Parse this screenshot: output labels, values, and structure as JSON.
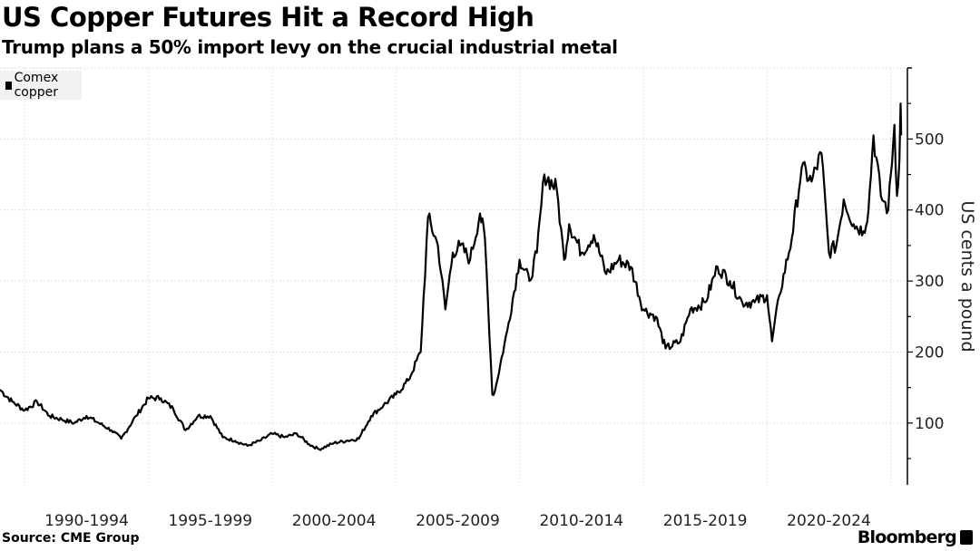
{
  "chart_data": {
    "type": "line",
    "title": "US Copper Futures Hit a Record High",
    "subtitle": "Trump plans a 50% import levy on the crucial industrial metal",
    "ylabel": "US cents a pound",
    "xlabel": "",
    "ylim": [
      13,
      600
    ],
    "xlim": [
      1989.0,
      2025.6
    ],
    "grid": true,
    "legend_placement": "top-left",
    "y_ticks": [
      100,
      200,
      300,
      400,
      500
    ],
    "x_tick_labels": [
      {
        "label": "1990-1994",
        "start": 1990
      },
      {
        "label": "1995-1999",
        "start": 1995
      },
      {
        "label": "2000-2004",
        "start": 2000
      },
      {
        "label": "2005-2009",
        "start": 2005
      },
      {
        "label": "2010-2014",
        "start": 2010
      },
      {
        "label": "2015-2019",
        "start": 2015
      },
      {
        "label": "2020-2024",
        "start": 2020
      }
    ],
    "series": [
      {
        "name": "Comex copper",
        "color": "#000000",
        "x": [
          1989.0,
          1989.5,
          1990.0,
          1990.5,
          1991.0,
          1991.5,
          1992.0,
          1992.5,
          1993.0,
          1993.5,
          1993.9,
          1994.5,
          1995.0,
          1995.5,
          1996.0,
          1996.5,
          1997.0,
          1997.5,
          1998.0,
          1998.5,
          1999.0,
          1999.5,
          2000.0,
          2000.5,
          2001.0,
          2001.5,
          2001.9,
          2002.5,
          2003.0,
          2003.5,
          2004.0,
          2004.5,
          2005.0,
          2005.5,
          2006.0,
          2006.3,
          2006.7,
          2007.0,
          2007.3,
          2007.6,
          2008.0,
          2008.4,
          2008.6,
          2008.9,
          2009.0,
          2009.5,
          2010.0,
          2010.4,
          2010.7,
          2011.0,
          2011.5,
          2011.8,
          2012.0,
          2012.5,
          2013.0,
          2013.5,
          2014.0,
          2014.5,
          2015.0,
          2015.5,
          2015.9,
          2016.5,
          2016.9,
          2017.5,
          2018.0,
          2018.5,
          2019.0,
          2019.5,
          2020.0,
          2020.2,
          2020.5,
          2021.0,
          2021.4,
          2021.8,
          2022.2,
          2022.5,
          2022.8,
          2023.1,
          2023.5,
          2023.9,
          2024.1,
          2024.3,
          2024.6,
          2024.9,
          2025.15,
          2025.25,
          2025.35,
          2025.4,
          2025.42
        ],
        "values": [
          147,
          130,
          118,
          130,
          110,
          105,
          100,
          110,
          100,
          90,
          78,
          110,
          135,
          135,
          120,
          90,
          110,
          110,
          80,
          75,
          68,
          75,
          85,
          80,
          85,
          70,
          63,
          72,
          75,
          78,
          110,
          125,
          140,
          160,
          200,
          390,
          350,
          260,
          340,
          350,
          330,
          395,
          360,
          140,
          145,
          230,
          330,
          300,
          340,
          450,
          430,
          330,
          380,
          340,
          365,
          310,
          330,
          320,
          260,
          250,
          205,
          215,
          260,
          270,
          320,
          300,
          270,
          270,
          280,
          215,
          280,
          360,
          460,
          440,
          480,
          340,
          350,
          415,
          380,
          370,
          400,
          505,
          420,
          400,
          520,
          420,
          470,
          550,
          505
        ]
      }
    ]
  },
  "footer": {
    "source": "Source: CME Group",
    "brand": "Bloomberg"
  }
}
